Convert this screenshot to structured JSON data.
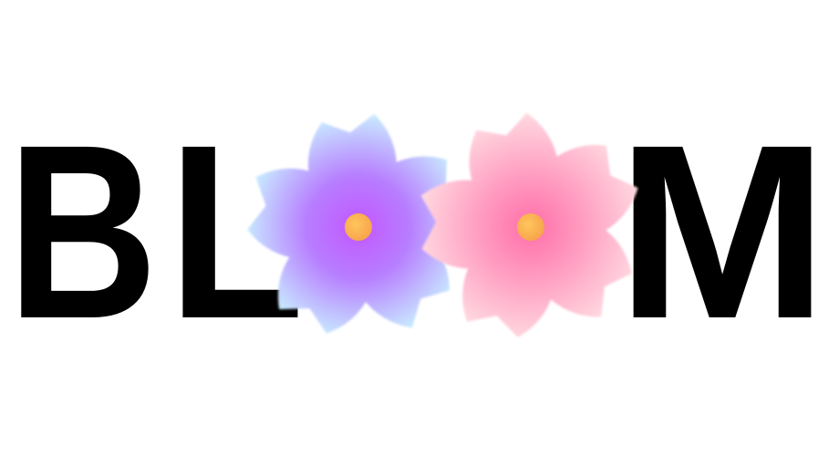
{
  "logo": {
    "text": "BLOOM",
    "letters": [
      "B",
      "L",
      "O",
      "O",
      "M"
    ],
    "text_color": "#000000",
    "flowers": [
      {
        "name": "purple-flower",
        "replaces_letter": "O",
        "petal_center_color": "#c257ff",
        "petal_mid_color": "#b77dff",
        "petal_edge_color": "#c8ecff",
        "center_color": "#ffc55c",
        "center_edge_color": "#f6a04a"
      },
      {
        "name": "pink-flower",
        "replaces_letter": "O",
        "petal_center_color": "#ff6ea8",
        "petal_mid_color": "#ff9cc0",
        "petal_edge_color": "#ffd9e1",
        "center_color": "#ffc55c",
        "center_edge_color": "#f6a04a"
      }
    ]
  }
}
